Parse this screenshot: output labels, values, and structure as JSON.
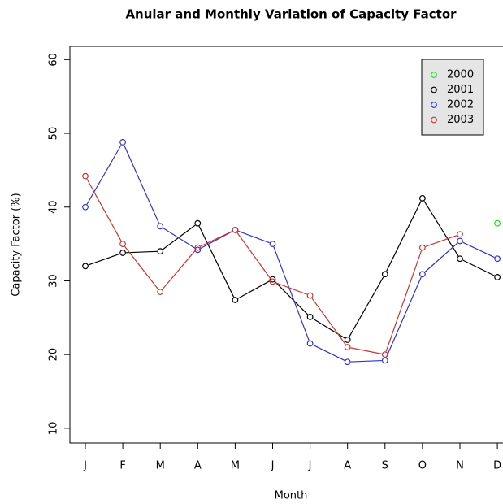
{
  "chart_data": {
    "type": "line",
    "title": "Anular and Monthly Variation of Capacity Factor",
    "x_label": "Month",
    "y_label": "Capacity Factor (%)",
    "categories": [
      "J",
      "F",
      "M",
      "A",
      "M",
      "J",
      "J",
      "A",
      "S",
      "O",
      "N",
      "D"
    ],
    "series": [
      {
        "name": "2000",
        "color": "#22dd22",
        "values": [
          null,
          null,
          null,
          null,
          null,
          null,
          null,
          null,
          null,
          null,
          null,
          37.8
        ]
      },
      {
        "name": "2001",
        "color": "#000000",
        "values": [
          32,
          33.8,
          34,
          37.8,
          27.4,
          30.2,
          25.1,
          22,
          30.9,
          41.2,
          33,
          30.5
        ]
      },
      {
        "name": "2002",
        "color": "#3333cc",
        "values": [
          40,
          48.8,
          37.4,
          34.2,
          36.9,
          35,
          21.5,
          19,
          19.2,
          30.9,
          35.4,
          33
        ]
      },
      {
        "name": "2003",
        "color": "#cc3333",
        "values": [
          44.2,
          35,
          28.5,
          34.5,
          36.9,
          29.9,
          28,
          21,
          20,
          34.5,
          36.3,
          null
        ]
      }
    ],
    "ylim": [
      8,
      61.8
    ],
    "yticks": [
      10,
      20,
      30,
      40,
      50,
      60
    ],
    "legend": "top-right"
  }
}
